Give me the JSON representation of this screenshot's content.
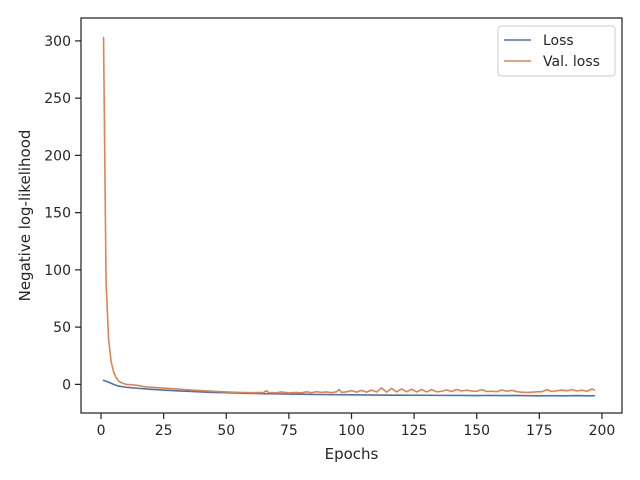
{
  "chart_data": {
    "type": "line",
    "xlabel": "Epochs",
    "ylabel": "Negative log-likelihood",
    "xlim": [
      -8,
      208
    ],
    "ylim": [
      -25,
      320
    ],
    "xticks": [
      0,
      25,
      50,
      75,
      100,
      125,
      150,
      175,
      200
    ],
    "yticks": [
      0,
      50,
      100,
      150,
      200,
      250,
      300
    ],
    "grid": false,
    "legend_position": "top-right",
    "series": [
      {
        "name": "Loss",
        "color": "#4c72b0",
        "points": [
          [
            1,
            3.5
          ],
          [
            3,
            2.0
          ],
          [
            5,
            0.0
          ],
          [
            7,
            -1.5
          ],
          [
            10,
            -2.5
          ],
          [
            15,
            -3.5
          ],
          [
            20,
            -4.3
          ],
          [
            25,
            -5.0
          ],
          [
            30,
            -5.6
          ],
          [
            35,
            -6.1
          ],
          [
            40,
            -6.6
          ],
          [
            45,
            -7.0
          ],
          [
            50,
            -7.3
          ],
          [
            55,
            -7.6
          ],
          [
            60,
            -7.9
          ],
          [
            65,
            -8.1
          ],
          [
            70,
            -8.3
          ],
          [
            75,
            -8.5
          ],
          [
            80,
            -8.6
          ],
          [
            85,
            -8.8
          ],
          [
            90,
            -8.9
          ],
          [
            95,
            -9.0
          ],
          [
            100,
            -9.1
          ],
          [
            105,
            -9.2
          ],
          [
            110,
            -9.3
          ],
          [
            115,
            -9.4
          ],
          [
            120,
            -9.4
          ],
          [
            125,
            -9.5
          ],
          [
            130,
            -9.5
          ],
          [
            135,
            -9.6
          ],
          [
            140,
            -9.7
          ],
          [
            145,
            -9.7
          ],
          [
            150,
            -9.8
          ],
          [
            155,
            -9.6
          ],
          [
            160,
            -9.8
          ],
          [
            165,
            -9.7
          ],
          [
            170,
            -9.9
          ],
          [
            175,
            -10.0
          ],
          [
            180,
            -9.9
          ],
          [
            185,
            -10.0
          ],
          [
            190,
            -9.8
          ],
          [
            195,
            -10.0
          ],
          [
            197,
            -9.9
          ]
        ]
      },
      {
        "name": "Val. loss",
        "color": "#dd8452",
        "points": [
          [
            1,
            303
          ],
          [
            2,
            90
          ],
          [
            3,
            40
          ],
          [
            4,
            20
          ],
          [
            5,
            11
          ],
          [
            6,
            6
          ],
          [
            7,
            3
          ],
          [
            8,
            1.5
          ],
          [
            10,
            0.0
          ],
          [
            13,
            -0.5
          ],
          [
            15,
            -1.0
          ],
          [
            17,
            -2.0
          ],
          [
            20,
            -2.5
          ],
          [
            25,
            -3.2
          ],
          [
            30,
            -4.0
          ],
          [
            35,
            -4.8
          ],
          [
            40,
            -5.4
          ],
          [
            45,
            -6.0
          ],
          [
            50,
            -6.6
          ],
          [
            55,
            -7.0
          ],
          [
            60,
            -7.3
          ],
          [
            65,
            -7.0
          ],
          [
            66,
            -5.5
          ],
          [
            67,
            -7.2
          ],
          [
            70,
            -7.3
          ],
          [
            72,
            -6.6
          ],
          [
            75,
            -7.5
          ],
          [
            78,
            -7.0
          ],
          [
            80,
            -7.4
          ],
          [
            82,
            -6.5
          ],
          [
            84,
            -7.2
          ],
          [
            86,
            -6.4
          ],
          [
            88,
            -7.0
          ],
          [
            90,
            -6.6
          ],
          [
            92,
            -7.2
          ],
          [
            94,
            -6.5
          ],
          [
            95,
            -4.5
          ],
          [
            96,
            -7.0
          ],
          [
            98,
            -6.5
          ],
          [
            100,
            -5.5
          ],
          [
            102,
            -6.8
          ],
          [
            104,
            -5.2
          ],
          [
            106,
            -6.8
          ],
          [
            108,
            -5.0
          ],
          [
            110,
            -6.7
          ],
          [
            112,
            -3.0
          ],
          [
            114,
            -6.8
          ],
          [
            116,
            -3.5
          ],
          [
            118,
            -6.5
          ],
          [
            120,
            -4.0
          ],
          [
            122,
            -6.5
          ],
          [
            124,
            -4.2
          ],
          [
            126,
            -6.6
          ],
          [
            128,
            -4.5
          ],
          [
            130,
            -6.6
          ],
          [
            132,
            -4.6
          ],
          [
            134,
            -6.5
          ],
          [
            136,
            -6.0
          ],
          [
            138,
            -4.8
          ],
          [
            140,
            -6.2
          ],
          [
            142,
            -4.5
          ],
          [
            144,
            -5.8
          ],
          [
            146,
            -5.0
          ],
          [
            148,
            -5.8
          ],
          [
            150,
            -6.0
          ],
          [
            152,
            -4.6
          ],
          [
            154,
            -6.2
          ],
          [
            156,
            -6.0
          ],
          [
            158,
            -6.4
          ],
          [
            160,
            -4.8
          ],
          [
            162,
            -6.0
          ],
          [
            164,
            -5.2
          ],
          [
            166,
            -6.4
          ],
          [
            168,
            -6.8
          ],
          [
            170,
            -7.0
          ],
          [
            172,
            -6.8
          ],
          [
            174,
            -6.5
          ],
          [
            176,
            -6.4
          ],
          [
            178,
            -4.6
          ],
          [
            180,
            -6.2
          ],
          [
            182,
            -5.5
          ],
          [
            184,
            -5.0
          ],
          [
            186,
            -5.6
          ],
          [
            188,
            -4.6
          ],
          [
            190,
            -5.8
          ],
          [
            192,
            -5.0
          ],
          [
            194,
            -6.0
          ],
          [
            196,
            -4.0
          ],
          [
            197,
            -5.0
          ]
        ]
      }
    ]
  }
}
